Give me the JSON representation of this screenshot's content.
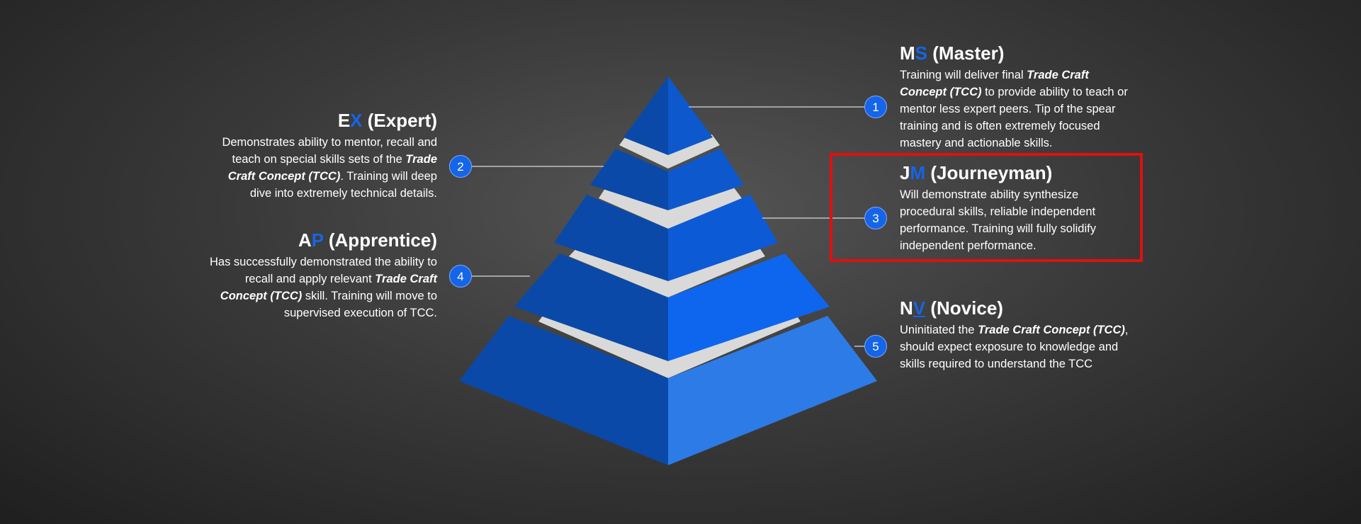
{
  "colors": {
    "accent": "#1565e8",
    "highlight": "#e01010",
    "separator": "#d9d9d9"
  },
  "levels": [
    {
      "number": "1",
      "abbr_first": "M",
      "abbr_second": "S",
      "name": "(Master)",
      "desc": [
        {
          "t": "Training will deliver final "
        },
        {
          "t": "Trade Craft Concept (TCC)",
          "bi": true
        },
        {
          "t": " to provide ability to teach or mentor less expert peers. Tip of the spear training and is often extremely focused mastery and actionable skills."
        }
      ]
    },
    {
      "number": "2",
      "abbr_first": "E",
      "abbr_second": "X",
      "name": "(Expert)",
      "desc": [
        {
          "t": "Demonstrates ability to mentor, recall and teach on special skills sets of the "
        },
        {
          "t": "Trade Craft Concept (TCC)",
          "bi": true
        },
        {
          "t": ". Training will deep dive into extremely technical details."
        }
      ]
    },
    {
      "number": "3",
      "abbr_first": "J",
      "abbr_second": "M",
      "name": "(Journeyman)",
      "highlighted": true,
      "desc": [
        {
          "t": "Will demonstrate ability synthesize procedural skills, reliable independent performance. Training will fully solidify independent performance."
        }
      ]
    },
    {
      "number": "4",
      "abbr_first": "A",
      "abbr_second": "P",
      "name": "(Apprentice)",
      "desc": [
        {
          "t": "Has successfully demonstrated the ability to recall and apply relevant "
        },
        {
          "t": "Trade Craft Concept (TCC)",
          "bi": true
        },
        {
          "t": " skill. Training will move to supervised execution of TCC."
        }
      ]
    },
    {
      "number": "5",
      "abbr_first": "N",
      "abbr_second": "V",
      "name": "(Novice)",
      "underline_second": true,
      "desc": [
        {
          "t": "Uninitiated the "
        },
        {
          "t": "Trade Craft Concept (TCC)",
          "bi": true
        },
        {
          "t": ", should expect exposure to knowledge and skills required to understand the TCC"
        }
      ]
    }
  ]
}
